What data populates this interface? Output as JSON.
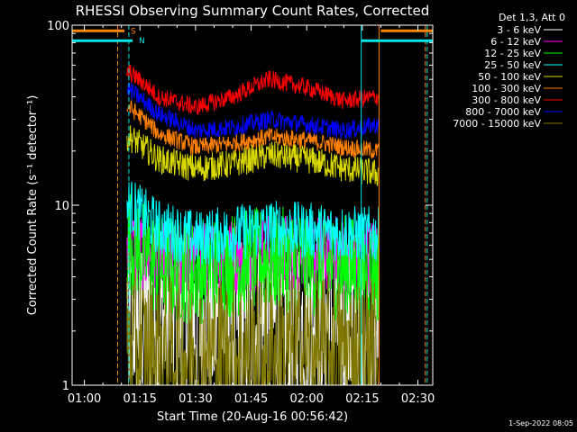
{
  "chart_data": {
    "type": "line",
    "title": "RHESSI Observing Summary Count Rates, Corrected",
    "xlabel": "Start Time (20-Aug-16 00:56:42)",
    "ylabel": "Corrected Count Rate (s⁻¹ detector⁻¹)",
    "legend_title": "Det 1,3, Att 0",
    "footer": "1-Sep-2022 08:05",
    "y_scale": "log",
    "ylim": [
      1,
      100
    ],
    "xlim_minutes": [
      56.7,
      154.0
    ],
    "x_ticks": [
      {
        "minute": 60,
        "label": "01:00"
      },
      {
        "minute": 75,
        "label": "01:15"
      },
      {
        "minute": 90,
        "label": "01:30"
      },
      {
        "minute": 105,
        "label": "01:45"
      },
      {
        "minute": 120,
        "label": "02:00"
      },
      {
        "minute": 135,
        "label": "02:15"
      },
      {
        "minute": 150,
        "label": "02:30"
      }
    ],
    "y_ticks": [
      {
        "value": 1,
        "label": "1"
      },
      {
        "value": 10,
        "label": "10"
      },
      {
        "value": 100,
        "label": "100"
      }
    ],
    "data_window_minutes": [
      71.5,
      139.5
    ],
    "flags": [
      {
        "name": "S",
        "color": "#ff8800",
        "start": 56.7,
        "end": 70.8,
        "level": 93
      },
      {
        "name": "S",
        "color": "#ff8800",
        "start": 140.0,
        "end": 154.0,
        "level": 93
      },
      {
        "name": "N",
        "color": "#00e8e8",
        "start": 56.7,
        "end": 73.0,
        "level": 82
      },
      {
        "name": "N",
        "color": "#00e8e8",
        "start": 134.7,
        "end": 154.0,
        "level": 82
      }
    ],
    "markers": [
      {
        "minute": 56.7,
        "color": "#00e8e8",
        "style": "solid"
      },
      {
        "minute": 69.0,
        "color": "#ff8800",
        "style": "dashed"
      },
      {
        "minute": 72.0,
        "color": "#00e8e8",
        "style": "dashed"
      },
      {
        "minute": 134.7,
        "color": "#00e8e8",
        "style": "solid"
      },
      {
        "minute": 139.5,
        "color": "#ff8800",
        "style": "solid"
      },
      {
        "minute": 152.0,
        "color": "#ff8800",
        "style": "dashed"
      },
      {
        "minute": 152.5,
        "color": "#00e8e8",
        "style": "dashed"
      }
    ],
    "series": [
      {
        "name": "3 - 6 keV",
        "color": "#ffffff",
        "x": [
          72,
          80,
          90,
          100,
          110,
          120,
          130,
          139
        ],
        "y": [
          2.5,
          2.3,
          2.3,
          2.2,
          2.2,
          2.2,
          2.2,
          2.3
        ],
        "noise": 0.55
      },
      {
        "name": "6 - 12 keV",
        "color": "#ff00ff",
        "x": [
          72,
          80,
          90,
          100,
          110,
          120,
          130,
          139
        ],
        "y": [
          6.0,
          5.0,
          5.0,
          5.2,
          5.5,
          5.5,
          5.3,
          5.2
        ],
        "noise": 0.22
      },
      {
        "name": "12 - 25 keV",
        "color": "#00ff00",
        "x": [
          72,
          80,
          90,
          100,
          110,
          120,
          130,
          139
        ],
        "y": [
          6.5,
          4.5,
          4.3,
          4.7,
          5.0,
          4.8,
          4.5,
          4.3
        ],
        "noise": 0.3
      },
      {
        "name": "25 - 50 keV",
        "color": "#00ffff",
        "x": [
          72,
          80,
          90,
          100,
          110,
          120,
          130,
          139
        ],
        "y": [
          10.0,
          7.5,
          6.5,
          7.0,
          7.5,
          7.2,
          7.0,
          6.8
        ],
        "noise": 0.16
      },
      {
        "name": "50 - 100 keV",
        "color": "#d8d800",
        "x": [
          72,
          80,
          90,
          100,
          110,
          120,
          130,
          139
        ],
        "y": [
          24,
          18,
          16,
          17,
          19,
          18,
          16,
          15
        ],
        "noise": 0.08
      },
      {
        "name": "100 - 300 keV",
        "color": "#ff8000",
        "x": [
          72,
          80,
          90,
          100,
          110,
          120,
          130,
          139
        ],
        "y": [
          35,
          25,
          21,
          22,
          24,
          23,
          21,
          20
        ],
        "noise": 0.05
      },
      {
        "name": "300 - 800 keV",
        "color": "#ff0000",
        "x": [
          72,
          80,
          90,
          100,
          110,
          120,
          130,
          139
        ],
        "y": [
          55,
          40,
          35,
          40,
          50,
          45,
          38,
          40
        ],
        "noise": 0.05
      },
      {
        "name": "800 - 7000 keV",
        "color": "#0000ff",
        "x": [
          72,
          80,
          90,
          100,
          110,
          120,
          130,
          139
        ],
        "y": [
          44,
          32,
          26,
          27,
          30,
          28,
          26,
          28
        ],
        "noise": 0.05
      },
      {
        "name": "7000 - 15000 keV",
        "color": "#807800",
        "x": [
          72,
          80,
          90,
          100,
          110,
          120,
          130,
          139
        ],
        "y": [
          1.6,
          1.5,
          1.5,
          1.5,
          1.5,
          1.5,
          1.5,
          1.5
        ],
        "noise": 0.45
      }
    ]
  }
}
